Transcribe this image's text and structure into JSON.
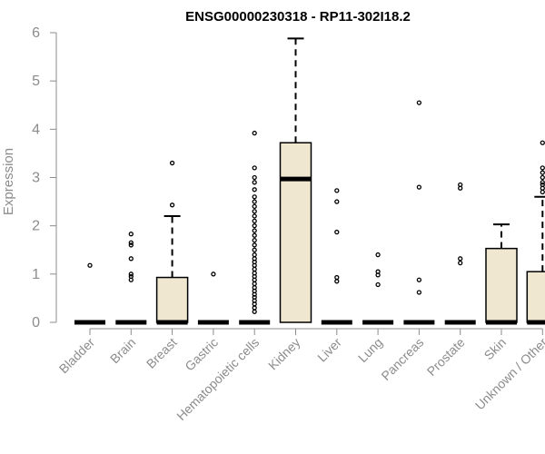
{
  "chart_data": {
    "type": "box",
    "title": "ENSG00000230318 - RP11-302I18.2",
    "xlabel": "",
    "ylabel": "Expression",
    "ylim": [
      0,
      6
    ],
    "yticks": [
      "0",
      "1",
      "2",
      "3",
      "4",
      "5",
      "6"
    ],
    "colors": {
      "box_fill": "#efe7cf",
      "stroke": "#000000",
      "axis_text": "#8c8c8c"
    },
    "categories": [
      "Bladder",
      "Brain",
      "Breast",
      "Gastric",
      "Hematopoietic cells",
      "Kidney",
      "Liver",
      "Lung",
      "Pancreas",
      "Prostate",
      "Skin",
      "Unknown / Other"
    ],
    "boxes": [
      {
        "q1": 0,
        "median": 0,
        "q3": 0,
        "whisker_low": 0,
        "whisker_high": 0,
        "outliers": [
          1.18
        ]
      },
      {
        "q1": 0,
        "median": 0,
        "q3": 0,
        "whisker_low": 0,
        "whisker_high": 0,
        "outliers": [
          0.88,
          0.95,
          1.0,
          1.32,
          1.6,
          1.65,
          1.83
        ]
      },
      {
        "q1": 0,
        "median": 0,
        "q3": 0.93,
        "whisker_low": 0,
        "whisker_high": 2.2,
        "outliers": [
          2.43,
          3.3
        ]
      },
      {
        "q1": 0,
        "median": 0,
        "q3": 0,
        "whisker_low": 0,
        "whisker_high": 0,
        "outliers": [
          1.0
        ]
      },
      {
        "q1": 0,
        "median": 0,
        "q3": 0,
        "whisker_low": 0,
        "whisker_high": 0,
        "outliers": [
          0.22,
          0.3,
          0.38,
          0.45,
          0.52,
          0.58,
          0.65,
          0.72,
          0.8,
          0.88,
          0.95,
          1.02,
          1.1,
          1.18,
          1.25,
          1.32,
          1.4,
          1.5,
          1.6,
          1.7,
          1.8,
          1.9,
          2.0,
          2.1,
          2.2,
          2.3,
          2.4,
          2.5,
          2.6,
          2.75,
          2.9,
          3.0,
          3.2,
          3.92
        ]
      },
      {
        "q1": 0,
        "median": 2.97,
        "q3": 3.72,
        "whisker_low": 0,
        "whisker_high": 5.88,
        "outliers": []
      },
      {
        "q1": 0,
        "median": 0,
        "q3": 0,
        "whisker_low": 0,
        "whisker_high": 0,
        "outliers": [
          0.85,
          0.93,
          1.87,
          2.5,
          2.73
        ]
      },
      {
        "q1": 0,
        "median": 0,
        "q3": 0,
        "whisker_low": 0,
        "whisker_high": 0,
        "outliers": [
          0.78,
          0.98,
          1.05,
          1.4
        ]
      },
      {
        "q1": 0,
        "median": 0,
        "q3": 0,
        "whisker_low": 0,
        "whisker_high": 0,
        "outliers": [
          0.62,
          0.88,
          2.8,
          4.55
        ]
      },
      {
        "q1": 0,
        "median": 0,
        "q3": 0,
        "whisker_low": 0,
        "whisker_high": 0,
        "outliers": [
          1.23,
          1.32,
          2.78,
          2.85
        ]
      },
      {
        "q1": 0,
        "median": 0,
        "q3": 1.53,
        "whisker_low": 0,
        "whisker_high": 2.03,
        "outliers": []
      },
      {
        "q1": 0,
        "median": 0,
        "q3": 1.05,
        "whisker_low": 0,
        "whisker_high": 2.6,
        "outliers": [
          2.7,
          2.78,
          2.85,
          2.9,
          3.0,
          3.1,
          3.2,
          3.72
        ]
      }
    ]
  }
}
